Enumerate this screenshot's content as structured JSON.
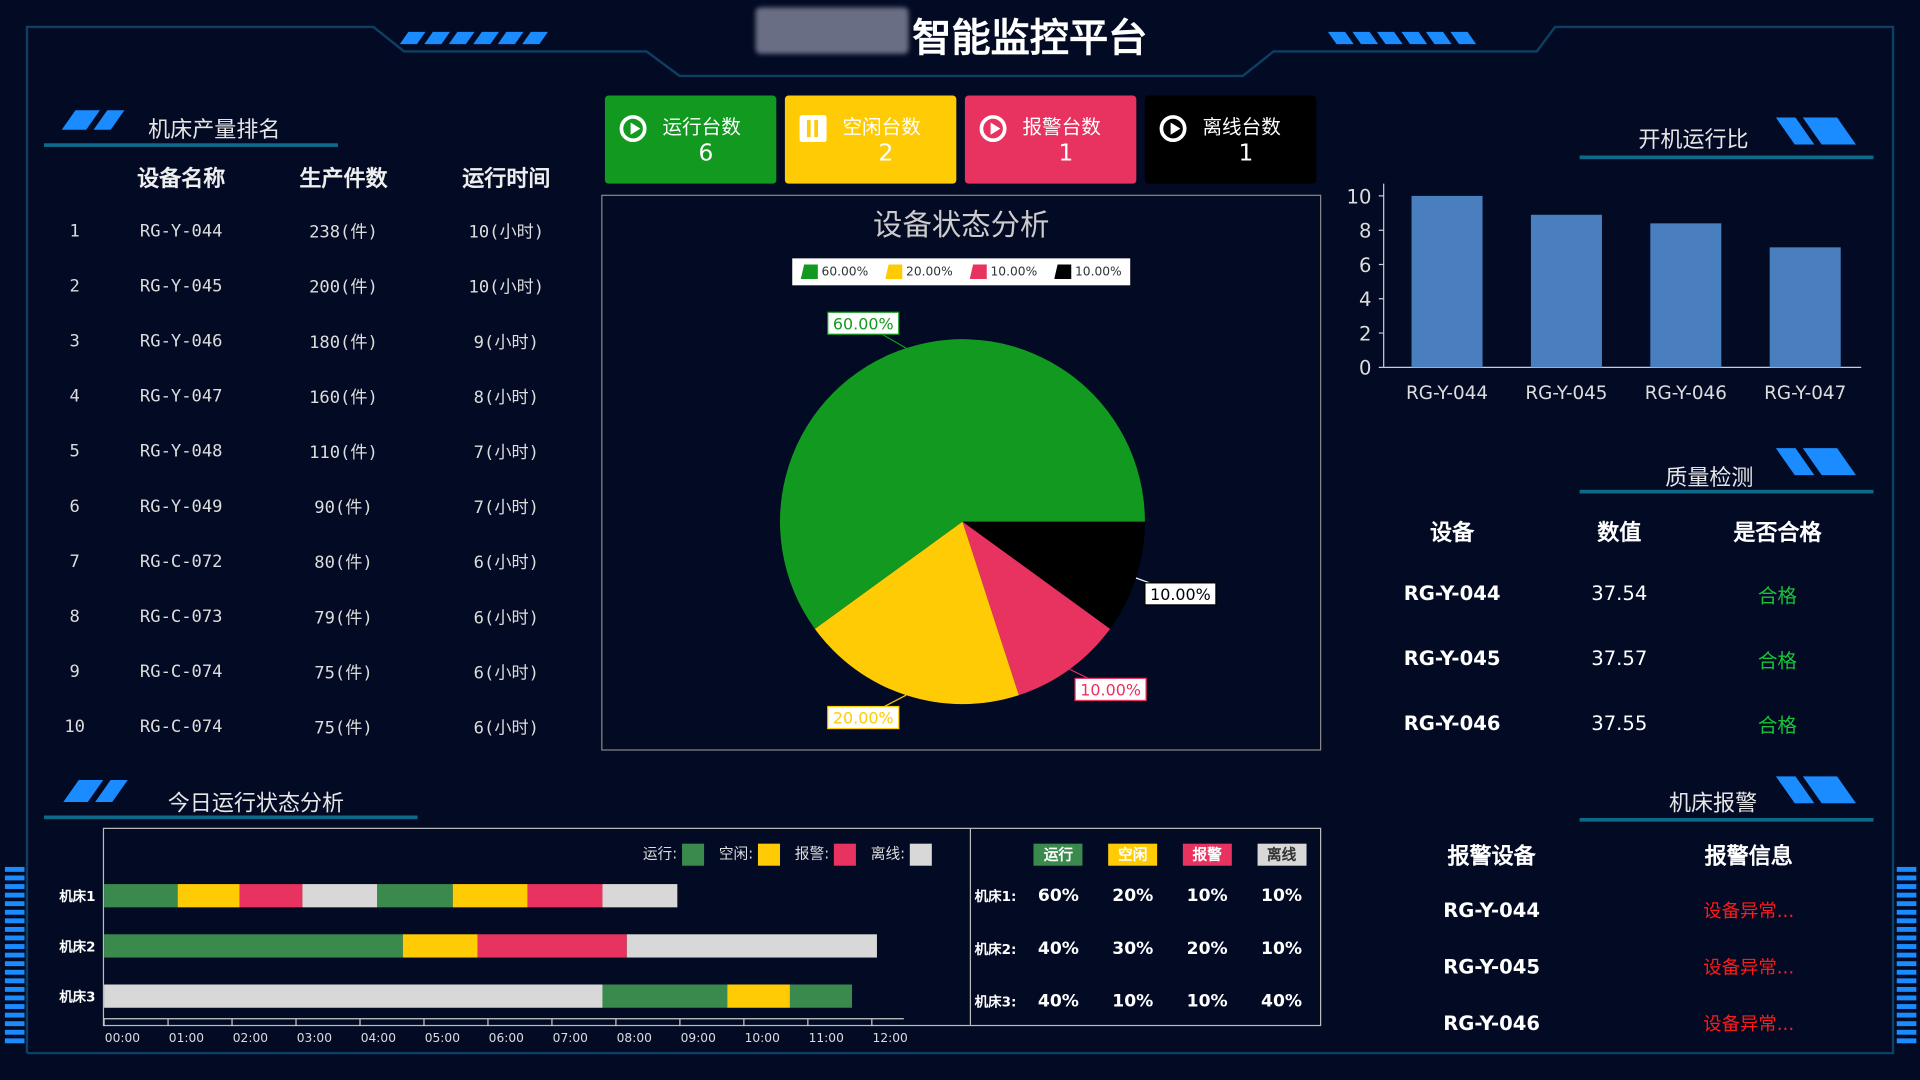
{
  "header": {
    "title": "智能监控平台"
  },
  "rank": {
    "title": "机床产量排名",
    "columns": [
      "设备名称",
      "生产件数",
      "运行时间"
    ],
    "rows": [
      [
        "1",
        "RG-Y-044",
        "238(件)",
        "10(小时)"
      ],
      [
        "2",
        "RG-Y-045",
        "200(件)",
        "10(小时)"
      ],
      [
        "3",
        "RG-Y-046",
        "180(件)",
        "9(小时)"
      ],
      [
        "4",
        "RG-Y-047",
        "160(件)",
        "8(小时)"
      ],
      [
        "5",
        "RG-Y-048",
        "110(件)",
        "7(小时)"
      ],
      [
        "6",
        "RG-Y-049",
        "90(件)",
        "7(小时)"
      ],
      [
        "7",
        "RG-C-072",
        "80(件)",
        "6(小时)"
      ],
      [
        "8",
        "RG-C-073",
        "79(件)",
        "6(小时)"
      ],
      [
        "9",
        "RG-C-074",
        "75(件)",
        "6(小时)"
      ],
      [
        "10",
        "RG-C-074",
        "75(件)",
        "6(小时)"
      ]
    ]
  },
  "cards": [
    {
      "label": "运行台数",
      "value": "6",
      "color": "#119a1f",
      "icon": "play-icon"
    },
    {
      "label": "空闲台数",
      "value": "2",
      "color": "#ffcb05",
      "icon": "pause-icon"
    },
    {
      "label": "报警台数",
      "value": "1",
      "color": "#e8325f",
      "icon": "play-icon"
    },
    {
      "label": "离线台数",
      "value": "1",
      "color": "#000000",
      "icon": "play-icon"
    }
  ],
  "chart_data": [
    {
      "type": "pie",
      "title": "设备状态分析",
      "slices": [
        {
          "label": "60.00%",
          "value": 60,
          "color": "#119a1f"
        },
        {
          "label": "20.00%",
          "value": 20,
          "color": "#ffcb05"
        },
        {
          "label": "10.00%",
          "value": 10,
          "color": "#e8325f"
        },
        {
          "label": "10.00%",
          "value": 10,
          "color": "#000000"
        }
      ],
      "legend_position": "top"
    },
    {
      "type": "bar",
      "title": "开机运行比",
      "categories": [
        "RG-Y-044",
        "RG-Y-045",
        "RG-Y-046",
        "RG-Y-047"
      ],
      "values": [
        10,
        8.9,
        8.4,
        7.0
      ],
      "ylim": [
        0,
        10
      ],
      "yticks": [
        "0",
        "2",
        "4",
        "6",
        "8",
        "10"
      ],
      "color": "#4a7fbf"
    },
    {
      "type": "timeline",
      "title": "今日运行状态分析",
      "legend": [
        {
          "label": "运行:",
          "color": "#3a8a4e"
        },
        {
          "label": "空闲:",
          "color": "#ffcb05"
        },
        {
          "label": "报警:",
          "color": "#e8325f"
        },
        {
          "label": "离线:",
          "color": "#d8d8d8"
        }
      ],
      "xticks": [
        "00:00",
        "01:00",
        "02:00",
        "03:00",
        "04:00",
        "05:00",
        "06:00",
        "07:00",
        "08:00",
        "09:00",
        "10:00",
        "11:00",
        "12:00"
      ],
      "rows": [
        {
          "name": "机床1",
          "segments": [
            [
              0,
              1.15,
              0
            ],
            [
              1.15,
              2.12,
              1
            ],
            [
              2.12,
              3.1,
              2
            ],
            [
              3.1,
              4.27,
              3
            ],
            [
              4.27,
              5.45,
              0
            ],
            [
              5.45,
              6.62,
              1
            ],
            [
              6.62,
              7.79,
              2
            ],
            [
              7.79,
              8.96,
              3
            ]
          ]
        },
        {
          "name": "机床2",
          "segments": [
            [
              0,
              4.67,
              0
            ],
            [
              4.67,
              5.84,
              1
            ],
            [
              5.84,
              8.17,
              2
            ],
            [
              8.17,
              12.08,
              3
            ]
          ]
        },
        {
          "name": "机床3",
          "segments": [
            [
              0,
              7.79,
              3
            ],
            [
              7.79,
              9.74,
              0
            ],
            [
              9.74,
              10.72,
              1
            ],
            [
              10.72,
              11.69,
              0
            ]
          ]
        }
      ]
    }
  ],
  "ratio_table": {
    "headers": [
      "运行",
      "空闲",
      "报警",
      "离线"
    ],
    "rows": [
      [
        "机床1:",
        "60%",
        "20%",
        "10%",
        "10%"
      ],
      [
        "机床2:",
        "40%",
        "30%",
        "20%",
        "10%"
      ],
      [
        "机床3:",
        "40%",
        "10%",
        "10%",
        "40%"
      ]
    ]
  },
  "quality": {
    "title": "质量检测",
    "columns": [
      "设备",
      "数值",
      "是否合格"
    ],
    "rows": [
      [
        "RG-Y-044",
        "37.54",
        "合格"
      ],
      [
        "RG-Y-045",
        "37.57",
        "合格"
      ],
      [
        "RG-Y-046",
        "37.55",
        "合格"
      ]
    ]
  },
  "alarm": {
    "title": "机床报警",
    "columns": [
      "报警设备",
      "报警信息"
    ],
    "rows": [
      [
        "RG-Y-044",
        "设备异常..."
      ],
      [
        "RG-Y-045",
        "设备异常..."
      ],
      [
        "RG-Y-046",
        "设备异常..."
      ]
    ]
  }
}
